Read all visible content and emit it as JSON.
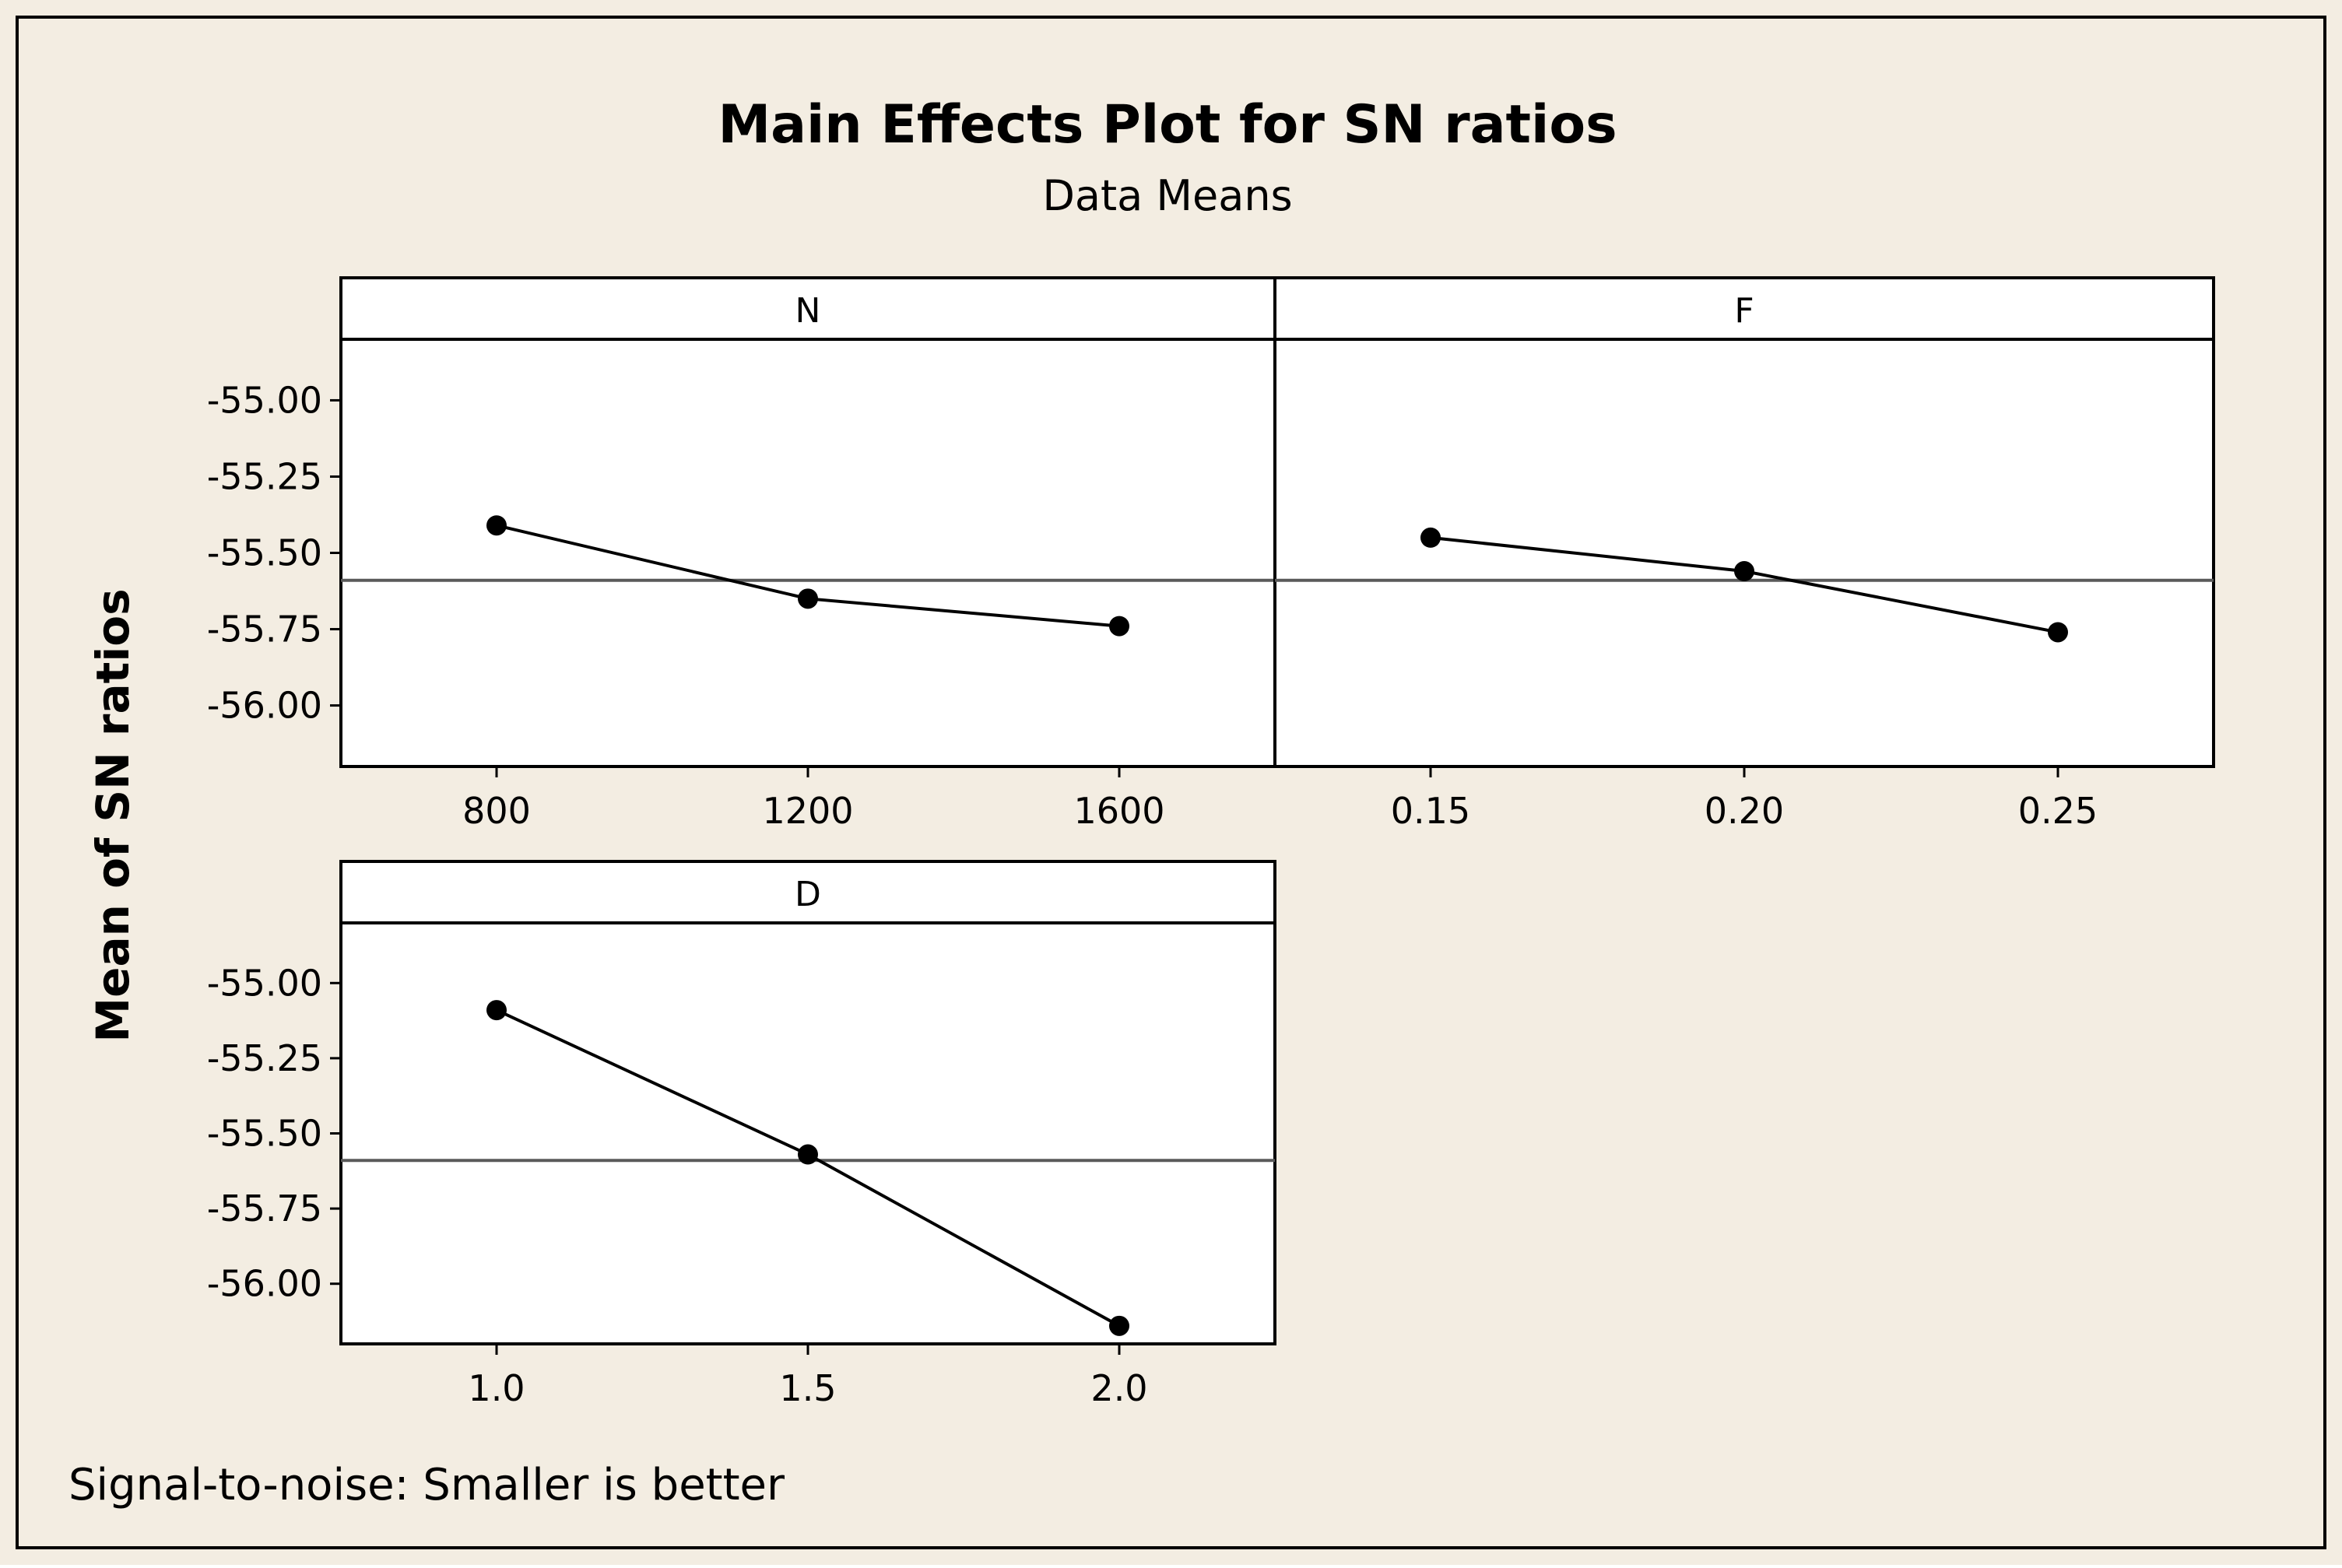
{
  "colors": {
    "background": "#f3ede2",
    "plot_background": "#ffffff",
    "line": "#000000",
    "reference_line": "#5a5a5a"
  },
  "chart_data": {
    "type": "line",
    "title": "Main Effects Plot for SN ratios",
    "subtitle": "Data Means",
    "ylabel": "Mean of SN ratios",
    "footnote": "Signal-to-noise: Smaller is better",
    "ylim": [
      -56.2,
      -54.8
    ],
    "yticks": [
      -55.0,
      -55.25,
      -55.5,
      -55.75,
      -56.0
    ],
    "ytick_labels": [
      "-55.00",
      "-55.25",
      "-55.50",
      "-55.75",
      "-56.00"
    ],
    "overall_mean": -55.59,
    "panels": [
      {
        "factor": "N",
        "levels": [
          "800",
          "1200",
          "1600"
        ],
        "values": [
          -55.41,
          -55.65,
          -55.74
        ]
      },
      {
        "factor": "F",
        "levels": [
          "0.15",
          "0.20",
          "0.25"
        ],
        "values": [
          -55.45,
          -55.56,
          -55.76
        ]
      },
      {
        "factor": "D",
        "levels": [
          "1.0",
          "1.5",
          "2.0"
        ],
        "values": [
          -55.09,
          -55.57,
          -56.14
        ]
      }
    ]
  }
}
